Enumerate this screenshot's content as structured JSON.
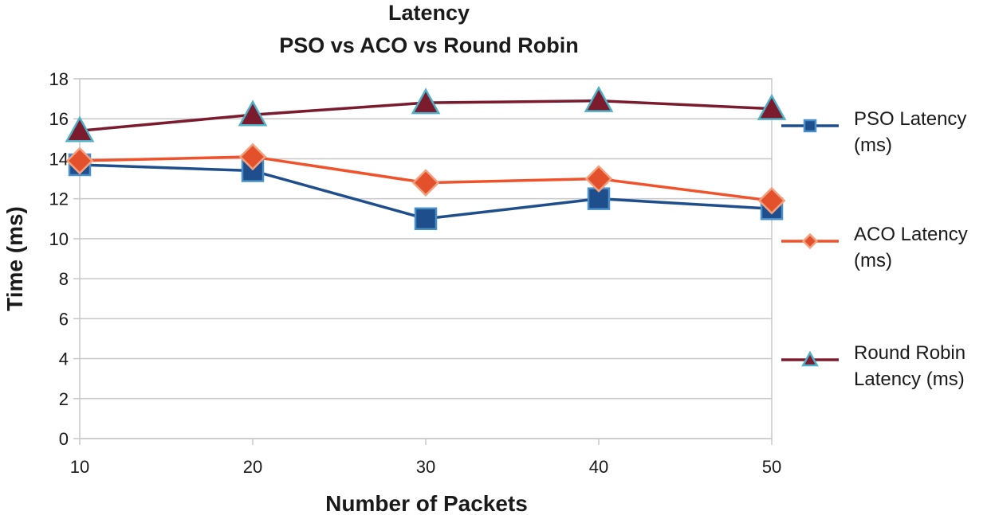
{
  "chart_data": {
    "type": "line",
    "title": [
      "Latency",
      "PSO vs ACO vs Round Robin"
    ],
    "xlabel": "Number of Packets",
    "ylabel": "Time (ms)",
    "x": [
      10,
      20,
      30,
      40,
      50
    ],
    "x_tick_labels": [
      "10",
      "20",
      "30",
      "40",
      "50"
    ],
    "ylim": [
      0,
      18
    ],
    "y_ticks": [
      0,
      2,
      4,
      6,
      8,
      10,
      12,
      14,
      16,
      18
    ],
    "y_tick_labels": [
      "0",
      "2",
      "4",
      "6",
      "8",
      "10",
      "12",
      "14",
      "16",
      "18"
    ],
    "grid": true,
    "legend_position": "right",
    "series": [
      {
        "name": "PSO Latency (ms)",
        "legend_lines": [
          "PSO Latency",
          "(ms)"
        ],
        "marker": "square",
        "color": "#1f4e8c",
        "marker_fill": "#1f4e8c",
        "marker_stroke": "#4a90c8",
        "values": [
          13.7,
          13.4,
          11.0,
          12.0,
          11.5
        ]
      },
      {
        "name": "ACO Latency (ms)",
        "legend_lines": [
          "ACO Latency",
          "(ms)"
        ],
        "marker": "diamond",
        "color": "#f0522b",
        "marker_fill": "#e2512c",
        "marker_stroke": "#f2a07e",
        "values": [
          13.9,
          14.1,
          12.8,
          13.0,
          11.9
        ]
      },
      {
        "name": "Round Robin Latency (ms)",
        "legend_lines": [
          "Round Robin",
          "Latency (ms)"
        ],
        "marker": "triangle",
        "color": "#7a1b2e",
        "marker_fill": "#7a1b2e",
        "marker_stroke": "#4fb0c6",
        "values": [
          15.4,
          16.2,
          16.8,
          16.9,
          16.5
        ]
      }
    ]
  }
}
